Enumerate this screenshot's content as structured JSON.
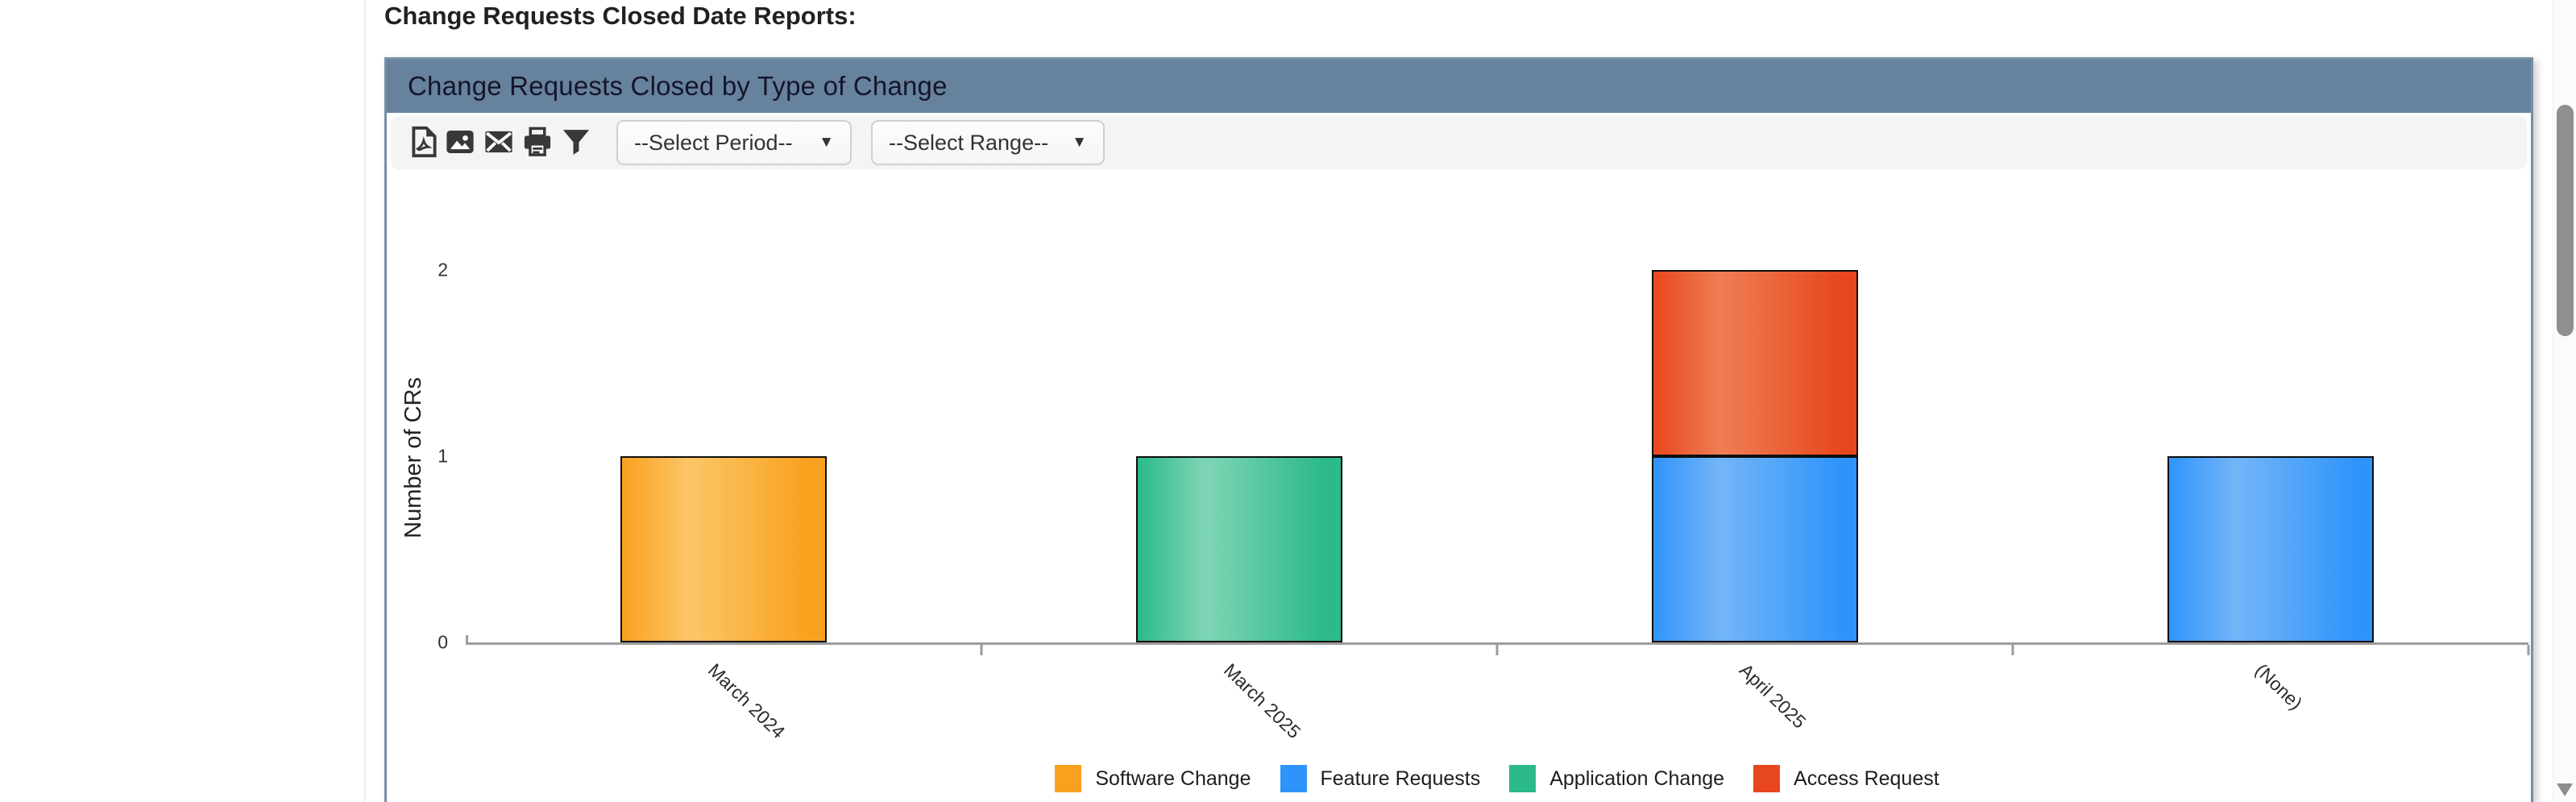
{
  "page": {
    "title": "Change Requests Closed Date Reports:"
  },
  "panel": {
    "title": "Change Requests Closed by Type of Change"
  },
  "toolbar": {
    "icons": [
      "pdf-export-icon",
      "image-export-icon",
      "email-icon",
      "print-icon",
      "filter-icon"
    ],
    "period_select": {
      "value": "--Select Period--"
    },
    "range_select": {
      "value": "--Select Range--"
    },
    "caret": "▼"
  },
  "colors": {
    "panel_header_bg": "#67829C",
    "panel_border": "#7590A9",
    "toolbar_bg": "#F4F4F4",
    "axis_line": "#9C9C9C",
    "bar_border": "#0E0E0E",
    "scrollbar_thumb": "#8F8F8F"
  },
  "chart_data": {
    "type": "bar",
    "stacked": true,
    "title": "Change Requests Closed by Type of Change",
    "categories": [
      "March 2024",
      "March 2025",
      "April 2025",
      "(None)"
    ],
    "series": [
      {
        "name": "Software Change",
        "color": "#F9A11F",
        "color_light": "#FCC667",
        "values": [
          1,
          0,
          0,
          0
        ]
      },
      {
        "name": "Feature Requests",
        "color": "#2F94FA",
        "color_light": "#74B5F8",
        "values": [
          0,
          0,
          1,
          1
        ]
      },
      {
        "name": "Application Change",
        "color": "#2BBA88",
        "color_light": "#7FD5B5",
        "values": [
          0,
          1,
          0,
          0
        ]
      },
      {
        "name": "Access Request",
        "color": "#E8471D",
        "color_light": "#EE7E55",
        "values": [
          0,
          0,
          1,
          0
        ]
      }
    ],
    "xlabel": "",
    "ylabel": "Number of CRs",
    "ylim": [
      0,
      2
    ],
    "yticks": [
      0,
      1,
      2
    ],
    "grid": false,
    "legend_position": "bottom"
  }
}
